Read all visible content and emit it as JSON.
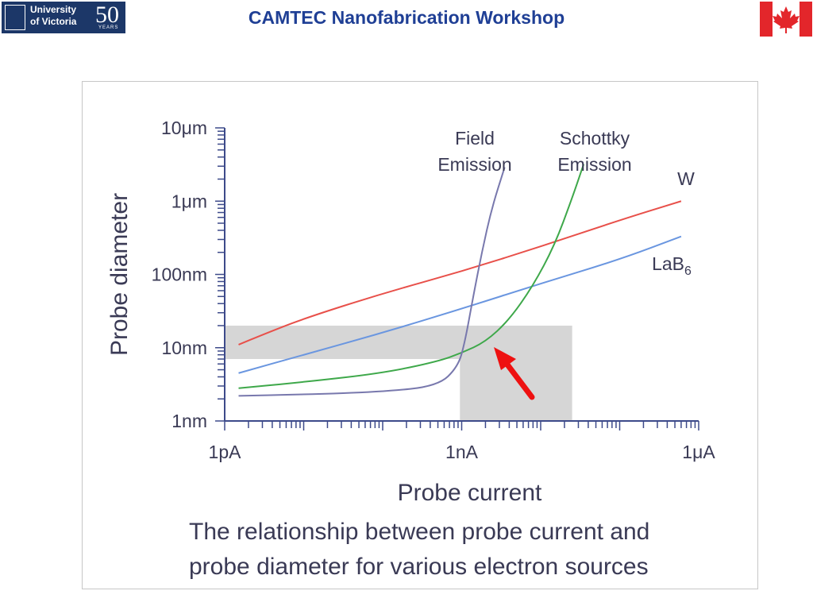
{
  "header": {
    "title": "CAMTEC Nanofabrication Workshop",
    "logo": {
      "line1": "University",
      "line2": "of Victoria",
      "anniversary": "50",
      "anniversary_sub": "YEARS"
    },
    "flag_icon": "canada-flag-icon"
  },
  "chart_data": {
    "type": "line",
    "xlabel": "Probe current",
    "ylabel": "Probe diameter",
    "x_scale": "log",
    "y_scale": "log",
    "x_ticks": [
      {
        "value": 1e-12,
        "label": "1pA"
      },
      {
        "value": 1e-09,
        "label": "1nA"
      },
      {
        "value": 1e-06,
        "label": "1μA"
      }
    ],
    "y_ticks": [
      {
        "value": 1e-09,
        "label": "1nm"
      },
      {
        "value": 1e-08,
        "label": "10nm"
      },
      {
        "value": 1e-07,
        "label": "100nm"
      },
      {
        "value": 1e-06,
        "label": "1μm"
      },
      {
        "value": 1e-05,
        "label": "10μm"
      }
    ],
    "xlim": [
      1e-12,
      1e-06
    ],
    "ylim": [
      1e-09,
      1e-05
    ],
    "series": [
      {
        "name": "W",
        "color": "#e8504a",
        "points": [
          [
            1.5e-12,
            1.1e-08
          ],
          [
            3e-12,
            1.5e-08
          ],
          [
            1e-11,
            2.5e-08
          ],
          [
            1e-10,
            5.5e-08
          ],
          [
            1e-09,
            1.1e-07
          ],
          [
            1e-08,
            2.4e-07
          ],
          [
            1e-07,
            5.5e-07
          ],
          [
            6e-07,
            1e-06
          ]
        ]
      },
      {
        "name": "LaB6",
        "color": "#6a96e0",
        "points": [
          [
            1.5e-12,
            4.5e-09
          ],
          [
            1e-11,
            8e-09
          ],
          [
            1e-10,
            1.6e-08
          ],
          [
            1e-09,
            3.4e-08
          ],
          [
            1e-08,
            7.5e-08
          ],
          [
            1e-07,
            1.6e-07
          ],
          [
            6e-07,
            3.3e-07
          ]
        ]
      },
      {
        "name": "Schottky Emission",
        "color": "#3ea84a",
        "points": [
          [
            1.5e-12,
            2.8e-09
          ],
          [
            1e-11,
            3.4e-09
          ],
          [
            1e-10,
            4.5e-09
          ],
          [
            5e-10,
            6.5e-09
          ],
          [
            1e-09,
            8.5e-09
          ],
          [
            2e-09,
            1.2e-08
          ],
          [
            4e-09,
            2.4e-08
          ],
          [
            8e-09,
            7e-08
          ],
          [
            1.5e-08,
            2.5e-07
          ],
          [
            2.5e-08,
            1.1e-06
          ],
          [
            3.5e-08,
            3.2e-06
          ]
        ]
      },
      {
        "name": "Field Emission",
        "color": "#7878ad",
        "points": [
          [
            1.5e-12,
            2.2e-09
          ],
          [
            1e-11,
            2.3e-09
          ],
          [
            1e-10,
            2.5e-09
          ],
          [
            5e-10,
            3e-09
          ],
          [
            9e-10,
            5.5e-09
          ],
          [
            1.1e-09,
            1.2e-08
          ],
          [
            1.4e-09,
            5e-08
          ],
          [
            1.8e-09,
            2e-07
          ],
          [
            2.4e-09,
            8e-07
          ],
          [
            3.5e-09,
            2.9e-06
          ]
        ]
      }
    ],
    "series_labels": [
      {
        "series": "Field Emission",
        "lines": [
          "Field",
          "Emission"
        ]
      },
      {
        "series": "Schottky Emission",
        "lines": [
          "Schottky",
          "Emission"
        ]
      },
      {
        "series": "W",
        "text": "W"
      },
      {
        "series": "LaB6",
        "text": "LaB",
        "subscript": "6"
      }
    ],
    "highlight": {
      "horizontal_band": {
        "y_range": [
          7e-09,
          2e-08
        ],
        "x_from": 1e-12,
        "x_to": 2.5e-08
      },
      "vertical_band": {
        "x_range": [
          9.5e-10,
          2.5e-08
        ],
        "y_from": 1e-09,
        "y_to": 2e-08
      },
      "fill": "#d6d6d6",
      "arrow_color": "#ee1111",
      "arrow_icon": "red-arrow-icon"
    },
    "grid": false,
    "legend": "none"
  },
  "caption": {
    "line1": "The relationship between probe current and",
    "line2": "probe diameter for various electron sources"
  }
}
